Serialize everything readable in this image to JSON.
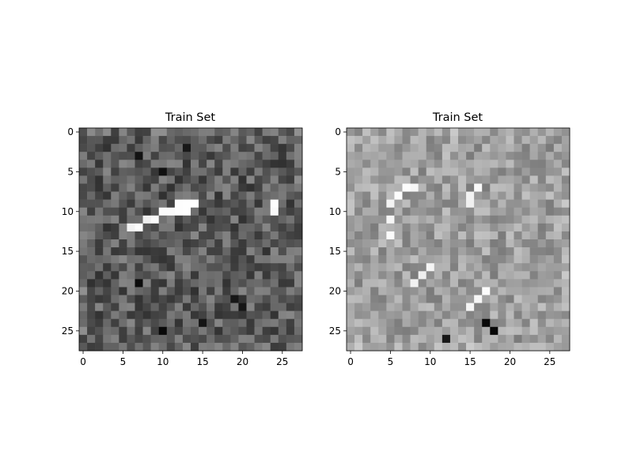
{
  "chart_data": [
    {
      "type": "heatmap",
      "title": "Train Set",
      "colormap": "gray",
      "rows": 28,
      "cols": 28,
      "x_ticks": [
        0,
        5,
        10,
        15,
        20,
        25
      ],
      "y_ticks": [
        0,
        5,
        10,
        15,
        20,
        25
      ],
      "xlim": [
        -0.5,
        27.5
      ],
      "ylim": [
        27.5,
        -0.5
      ],
      "brightest_cells": [
        [
          10,
          10
        ],
        [
          10,
          11
        ],
        [
          10,
          12
        ],
        [
          10,
          13
        ],
        [
          9,
          12
        ],
        [
          9,
          13
        ],
        [
          9,
          14
        ],
        [
          11,
          8
        ],
        [
          11,
          9
        ],
        [
          12,
          6
        ],
        [
          12,
          7
        ],
        [
          9,
          24
        ],
        [
          10,
          24
        ]
      ],
      "darkest_cells": [
        [
          2,
          13
        ],
        [
          5,
          10
        ],
        [
          3,
          7
        ],
        [
          19,
          7
        ],
        [
          25,
          10
        ],
        [
          24,
          15
        ],
        [
          21,
          19
        ],
        [
          22,
          20
        ]
      ]
    },
    {
      "type": "heatmap",
      "title": "Train Set",
      "colormap": "gray",
      "rows": 28,
      "cols": 28,
      "x_ticks": [
        0,
        5,
        10,
        15,
        20,
        25
      ],
      "y_ticks": [
        0,
        5,
        10,
        15,
        20,
        25
      ],
      "xlim": [
        -0.5,
        27.5
      ],
      "ylim": [
        27.5,
        -0.5
      ],
      "brightest_cells": [
        [
          7,
          7
        ],
        [
          7,
          8
        ],
        [
          8,
          6
        ],
        [
          9,
          5
        ],
        [
          11,
          5
        ],
        [
          13,
          5
        ],
        [
          7,
          16
        ],
        [
          8,
          15
        ],
        [
          9,
          15
        ],
        [
          17,
          10
        ],
        [
          18,
          9
        ],
        [
          19,
          8
        ],
        [
          20,
          17
        ],
        [
          21,
          16
        ],
        [
          22,
          15
        ]
      ],
      "darkest_cells": [
        [
          25,
          18
        ],
        [
          24,
          17
        ],
        [
          26,
          12
        ]
      ]
    }
  ]
}
